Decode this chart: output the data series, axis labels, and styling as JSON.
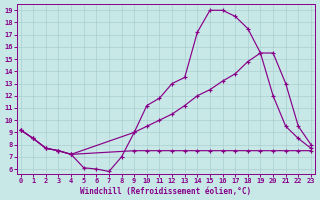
{
  "xlabel": "Windchill (Refroidissement éolien,°C)",
  "background_color": "#c8e8e8",
  "line_color": "#880088",
  "grid_color": "#a8cccc",
  "xlim": [
    -0.3,
    23.3
  ],
  "ylim": [
    5.6,
    19.5
  ],
  "xticks": [
    0,
    1,
    2,
    3,
    4,
    5,
    6,
    7,
    8,
    9,
    10,
    11,
    12,
    13,
    14,
    15,
    16,
    17,
    18,
    19,
    20,
    21,
    22,
    23
  ],
  "yticks": [
    6,
    7,
    8,
    9,
    10,
    11,
    12,
    13,
    14,
    15,
    16,
    17,
    18,
    19
  ],
  "curveA_x": [
    0,
    1,
    2,
    3,
    4,
    5,
    6,
    7,
    8,
    9,
    10,
    11,
    12,
    13,
    14,
    15,
    16,
    17,
    18,
    19,
    20,
    21,
    22,
    23
  ],
  "curveA_y": [
    9.2,
    8.5,
    7.7,
    7.5,
    7.2,
    6.1,
    6.0,
    5.8,
    7.0,
    9.0,
    11.2,
    11.8,
    13.0,
    13.5,
    17.2,
    19.0,
    19.0,
    18.5,
    17.5,
    15.5,
    12.0,
    9.5,
    8.5,
    7.7
  ],
  "curveB_x": [
    0,
    1,
    2,
    3,
    4,
    9,
    10,
    11,
    12,
    13,
    14,
    15,
    16,
    17,
    18,
    19,
    20,
    21,
    22,
    23
  ],
  "curveB_y": [
    9.2,
    8.5,
    7.7,
    7.5,
    7.2,
    9.0,
    9.5,
    10.0,
    10.5,
    11.2,
    12.0,
    12.5,
    13.2,
    13.8,
    14.8,
    15.5,
    15.5,
    13.0,
    9.5,
    8.0
  ],
  "curveC_x": [
    0,
    1,
    2,
    3,
    4,
    9,
    10,
    11,
    12,
    13,
    14,
    15,
    16,
    17,
    18,
    19,
    20,
    21,
    22,
    23
  ],
  "curveC_y": [
    9.2,
    8.5,
    7.7,
    7.5,
    7.2,
    7.5,
    7.5,
    7.5,
    7.5,
    7.5,
    7.5,
    7.5,
    7.5,
    7.5,
    7.5,
    7.5,
    7.5,
    7.5,
    7.5,
    7.5
  ]
}
